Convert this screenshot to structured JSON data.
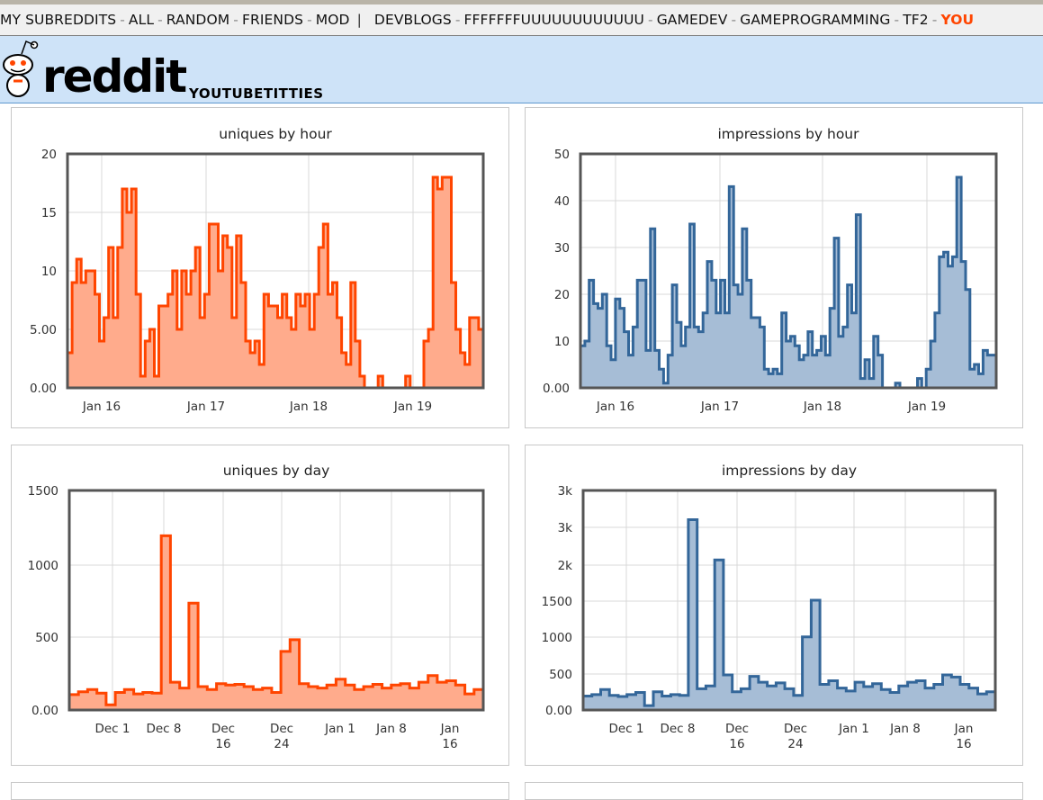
{
  "topbar": {
    "links": [
      "MY SUBREDDITS",
      "ALL",
      "RANDOM",
      "FRIENDS",
      "MOD"
    ],
    "subreddits": [
      "DEVBLOGS",
      "FFFFFFFUUUUUUUUUUUU",
      "GAMEDEV",
      "GAMEPROGRAMMING",
      "TF2",
      "YOU"
    ],
    "divider": "|",
    "dash": "-"
  },
  "header": {
    "logo": "reddit",
    "subreddit": "YOUTUBETITTIES"
  },
  "colors": {
    "orange": "#ff4500",
    "orange_fill": "#ffab8c",
    "blue": "#336699",
    "blue_fill": "#a6bdd6"
  },
  "chart_data": [
    {
      "type": "area",
      "title": "uniques by hour",
      "ylim": [
        0,
        20
      ],
      "yticks": [
        "0.00",
        "5.00",
        "10",
        "15",
        "20"
      ],
      "xticks": [
        "Jan 16",
        "Jan 17",
        "Jan 18",
        "Jan 19"
      ],
      "x_start": "Jan 15 15:00",
      "x_step": "1 hour",
      "color": "orange",
      "values": [
        3,
        9,
        11,
        9,
        10,
        10,
        8,
        4,
        6,
        12,
        6,
        12,
        17,
        15,
        17,
        8,
        1,
        4,
        5,
        1,
        7,
        7,
        8,
        10,
        5,
        10,
        8,
        10,
        12,
        6,
        8,
        14,
        14,
        10,
        13,
        12,
        6,
        13,
        9,
        4,
        3,
        4,
        2,
        8,
        7,
        7,
        6,
        8,
        6,
        5,
        8,
        7,
        8,
        5,
        8,
        12,
        14,
        8,
        9,
        6,
        3,
        2,
        9,
        4,
        1,
        0,
        0,
        0,
        1,
        0,
        0,
        0,
        0,
        0,
        1,
        0,
        0,
        0,
        4,
        5,
        18,
        17,
        18,
        18,
        9,
        5,
        3,
        2,
        6,
        6,
        5
      ]
    },
    {
      "type": "area",
      "title": "impressions by hour",
      "ylim": [
        0,
        50
      ],
      "yticks": [
        "0.00",
        "10",
        "20",
        "30",
        "40",
        "50"
      ],
      "xticks": [
        "Jan 16",
        "Jan 17",
        "Jan 18",
        "Jan 19"
      ],
      "x_start": "Jan 15 15:00",
      "x_step": "1 hour",
      "color": "blue",
      "values": [
        9,
        10,
        23,
        18,
        17,
        20,
        9,
        6,
        19,
        17,
        12,
        7,
        13,
        23,
        23,
        8,
        34,
        8,
        4,
        1,
        7,
        22,
        14,
        9,
        13,
        35,
        13,
        12,
        16,
        27,
        23,
        16,
        23,
        16,
        43,
        22,
        20,
        34,
        23,
        15,
        15,
        13,
        4,
        3,
        4,
        3,
        16,
        10,
        11,
        9,
        6,
        7,
        12,
        7,
        8,
        11,
        7,
        17,
        32,
        11,
        13,
        22,
        16,
        37,
        2,
        6,
        2,
        11,
        7,
        0,
        0,
        0,
        1,
        0,
        0,
        0,
        0,
        2,
        0,
        4,
        10,
        16,
        28,
        29,
        26,
        28,
        45,
        27,
        21,
        4,
        5,
        3,
        8,
        7,
        7
      ]
    },
    {
      "type": "area",
      "title": "uniques by day",
      "ylim": [
        0,
        1500
      ],
      "yticks": [
        "0.00",
        "500",
        "1000",
        "1500"
      ],
      "xticks": [
        "Dec 1",
        "Dec 8",
        "Dec\n16",
        "Dec\n24",
        "Jan 1",
        "Jan 8",
        "Jan\n16"
      ],
      "x_start": "Nov 25",
      "x_step": "1 day",
      "color": "orange",
      "values": [
        105,
        125,
        140,
        115,
        35,
        120,
        140,
        110,
        120,
        115,
        1190,
        190,
        150,
        730,
        160,
        140,
        180,
        170,
        175,
        160,
        140,
        150,
        120,
        400,
        480,
        180,
        160,
        150,
        170,
        210,
        170,
        140,
        160,
        175,
        150,
        170,
        180,
        150,
        190,
        235,
        190,
        200,
        170,
        110,
        140
      ]
    },
    {
      "type": "area",
      "title": "impressions by day",
      "ylim": [
        0,
        3000
      ],
      "yticks": [
        "0.00",
        "500",
        "1000",
        "1500",
        "2k",
        "3k",
        "3k"
      ],
      "xticks": [
        "Dec 1",
        "Dec 8",
        "Dec\n16",
        "Dec\n24",
        "Jan 1",
        "Jan 8",
        "Jan\n16"
      ],
      "x_start": "Nov 25",
      "x_step": "1 day",
      "color": "blue",
      "values": [
        190,
        210,
        280,
        200,
        185,
        210,
        240,
        60,
        250,
        190,
        210,
        200,
        2600,
        290,
        330,
        2050,
        480,
        250,
        290,
        460,
        380,
        330,
        370,
        290,
        200,
        1000,
        1500,
        350,
        400,
        300,
        260,
        380,
        320,
        360,
        280,
        240,
        330,
        380,
        400,
        300,
        350,
        480,
        450,
        350,
        300,
        220,
        250
      ]
    }
  ]
}
